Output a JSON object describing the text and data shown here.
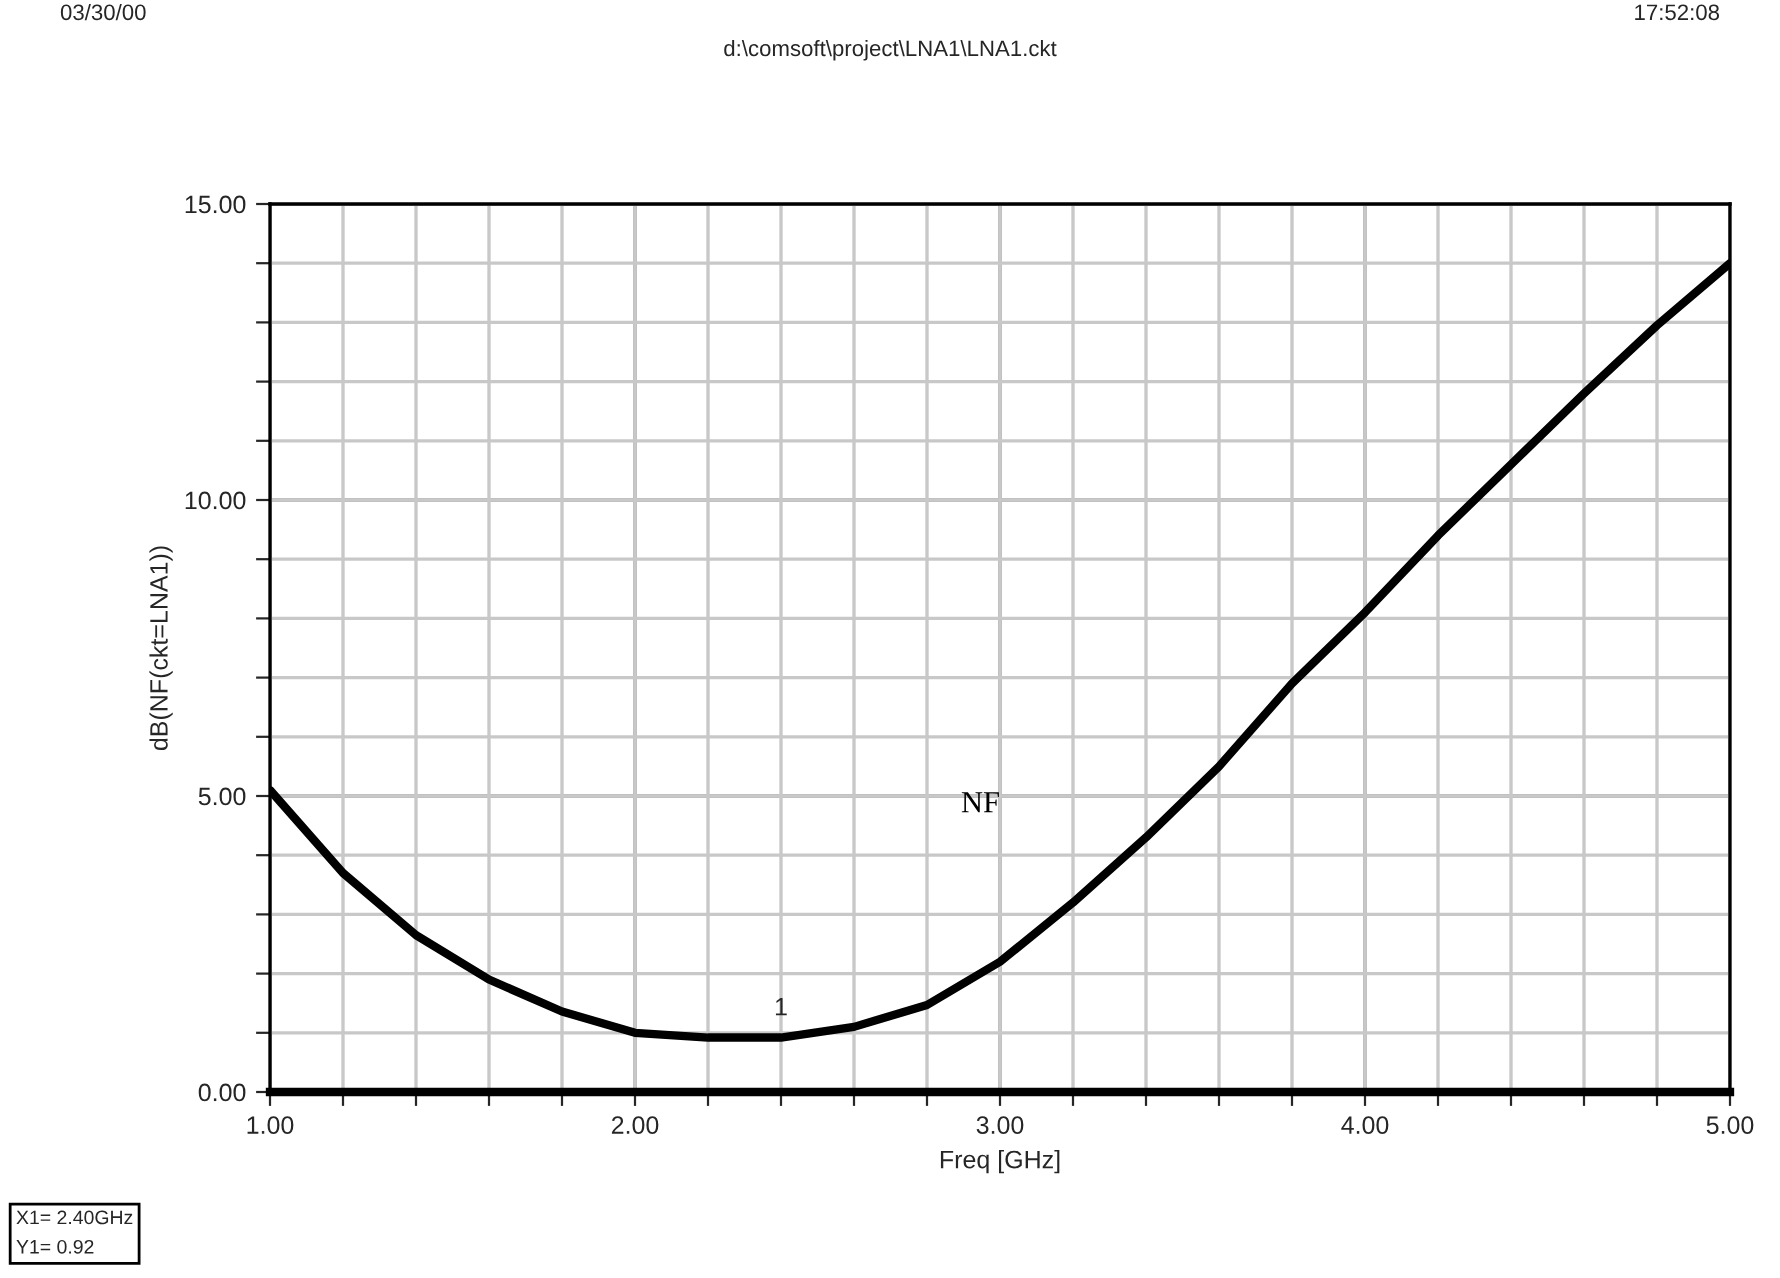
{
  "chart_data": {
    "type": "line",
    "subtitle": "d:\\comsoft\\project\\LNA1\\LNA1.ckt",
    "xlabel": "Freq [GHz]",
    "ylabel": "dB(NF(ckt=LNA1))",
    "x": [
      1.0,
      1.2,
      1.4,
      1.6,
      1.8,
      2.0,
      2.2,
      2.4,
      2.6,
      2.8,
      3.0,
      3.2,
      3.4,
      3.6,
      3.8,
      4.0,
      4.2,
      4.4,
      4.6,
      4.8,
      5.0
    ],
    "series": [
      {
        "name": "NF",
        "color": "#000000",
        "values": [
          5.1,
          3.7,
          2.65,
          1.9,
          1.36,
          1.0,
          0.92,
          0.92,
          1.1,
          1.47,
          2.2,
          3.2,
          4.3,
          5.5,
          6.9,
          8.1,
          9.4,
          10.6,
          11.8,
          12.95,
          14.0
        ]
      }
    ],
    "xlim": [
      1.0,
      5.0
    ],
    "ylim": [
      0,
      15
    ],
    "xticks": [
      {
        "value": 1.0,
        "label": "1.00"
      },
      {
        "value": 1.2,
        "label": null
      },
      {
        "value": 1.4,
        "label": null
      },
      {
        "value": 1.6,
        "label": null
      },
      {
        "value": 1.8,
        "label": null
      },
      {
        "value": 2.0,
        "label": "2.00"
      },
      {
        "value": 2.2,
        "label": null
      },
      {
        "value": 2.4,
        "label": null
      },
      {
        "value": 2.6,
        "label": null
      },
      {
        "value": 2.8,
        "label": null
      },
      {
        "value": 3.0,
        "label": "3.00"
      },
      {
        "value": 3.2,
        "label": null
      },
      {
        "value": 3.4,
        "label": null
      },
      {
        "value": 3.6,
        "label": null
      },
      {
        "value": 3.8,
        "label": null
      },
      {
        "value": 4.0,
        "label": "4.00"
      },
      {
        "value": 4.2,
        "label": null
      },
      {
        "value": 4.4,
        "label": null
      },
      {
        "value": 4.6,
        "label": null
      },
      {
        "value": 4.8,
        "label": null
      },
      {
        "value": 5.0,
        "label": "5.00"
      }
    ],
    "yticks": [
      {
        "value": 0,
        "label": "0.00"
      },
      {
        "value": 1,
        "label": null
      },
      {
        "value": 2,
        "label": null
      },
      {
        "value": 3,
        "label": null
      },
      {
        "value": 4,
        "label": null
      },
      {
        "value": 5,
        "label": "5.00"
      },
      {
        "value": 6,
        "label": null
      },
      {
        "value": 7,
        "label": null
      },
      {
        "value": 8,
        "label": null
      },
      {
        "value": 9,
        "label": null
      },
      {
        "value": 10,
        "label": "10.00"
      },
      {
        "value": 11,
        "label": null
      },
      {
        "value": 12,
        "label": null
      },
      {
        "value": 13,
        "label": null
      },
      {
        "value": 14,
        "label": null
      },
      {
        "value": 15,
        "label": "15.00"
      }
    ],
    "grid": true,
    "marker": "none",
    "line_style": "solid",
    "annotations": [
      "03/30/00",
      "17:52:08",
      {
        "text": "1",
        "x": 2.4,
        "y": 0.92
      },
      "X1= 2.40GHz",
      "Y1= 0.92"
    ]
  }
}
